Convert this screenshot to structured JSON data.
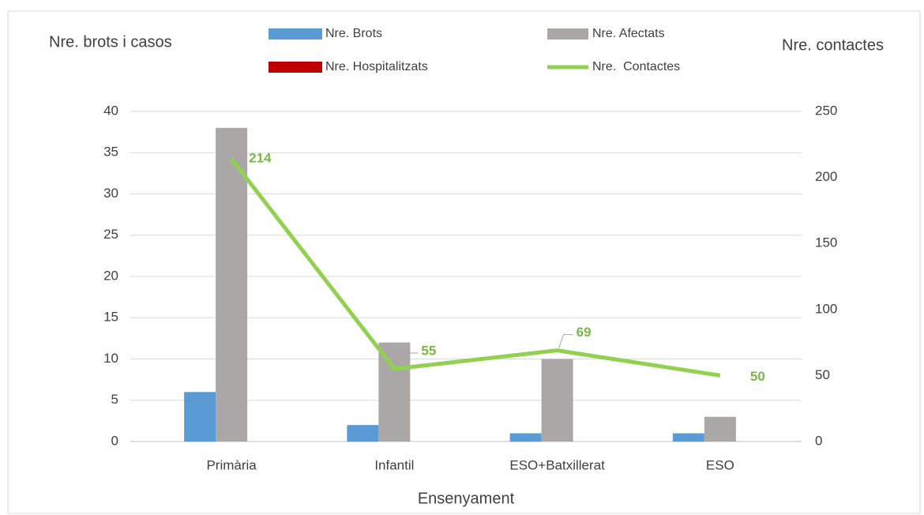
{
  "chart_data": {
    "type": "bar",
    "y_label": "Nre. brots i casos",
    "y2_label": "Nre. contactes",
    "x_label": "Ensenyament",
    "categories": [
      "Primària",
      "Infantil",
      "ESO+Batxillerat",
      "ESO"
    ],
    "series": [
      {
        "name": "Nre. Brots",
        "type": "bar",
        "color": "#5b9bd5",
        "values": [
          6,
          2,
          1,
          1
        ]
      },
      {
        "name": "Nre. Afectats",
        "type": "bar",
        "color": "#aba7a7",
        "values": [
          38,
          12,
          10,
          3
        ]
      },
      {
        "name": "Nre. Hospitalitzats",
        "type": "bar",
        "color": "#c00000",
        "values": [
          0,
          0,
          0,
          0
        ]
      },
      {
        "name": "Nre.  Contactes",
        "type": "line",
        "axis": "y2",
        "color": "#92d050",
        "values": [
          214,
          55,
          69,
          50
        ]
      }
    ],
    "ylim": [
      0,
      40
    ],
    "yticks": [
      0,
      5,
      10,
      15,
      20,
      25,
      30,
      35,
      40
    ],
    "y2lim": [
      0,
      250
    ],
    "y2ticks": [
      0,
      50,
      100,
      150,
      200,
      250
    ],
    "grid": true
  }
}
